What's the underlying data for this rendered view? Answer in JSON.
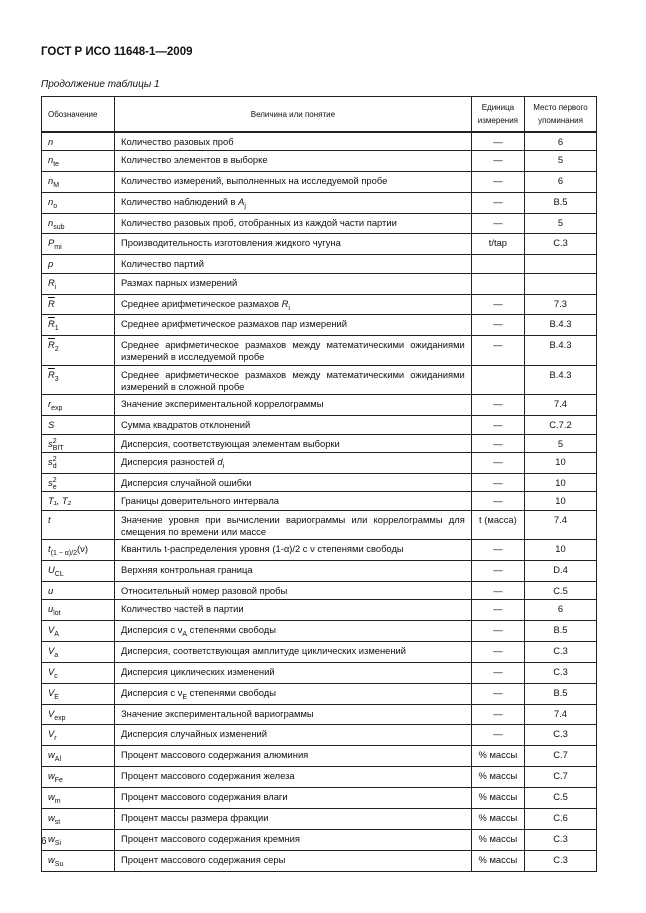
{
  "header": {
    "doc_id": "ГОСТ Р ИСО 11648-1—2009"
  },
  "caption": "Продолжение таблицы 1",
  "table": {
    "headers": [
      "Обозначение",
      "Величина или понятие",
      "Единица измерения",
      "Место первого упоминания"
    ],
    "rows": [
      {
        "sym": "n",
        "desc": "Количество разовых проб",
        "unit": "—",
        "ref": "6"
      },
      {
        "sym": "n",
        "sub": "te",
        "desc": "Количество элементов в выборке",
        "unit": "—",
        "ref": "5"
      },
      {
        "sym": "n",
        "sub": "M",
        "desc": "Количество измерений, выполненных на исследуемой пробе",
        "unit": "—",
        "ref": "6"
      },
      {
        "sym": "n",
        "sub": "o",
        "desc": "Количество наблюдений в A_j",
        "unit": "—",
        "ref": "B.5"
      },
      {
        "sym": "n",
        "sub": "sub",
        "desc": "Количество разовых проб, отобранных из каждой части партии",
        "unit": "—",
        "ref": "5"
      },
      {
        "sym": "P",
        "sub": "mi",
        "desc": "Производительность изготовления жидкого чугуна",
        "unit": "t/tap",
        "ref": "C.3"
      },
      {
        "sym": "p",
        "desc": "Количество партий",
        "unit": "",
        "ref": ""
      },
      {
        "sym": "R",
        "sub": "i",
        "desc": "Размах парных измерений",
        "unit": "",
        "ref": ""
      },
      {
        "sym": "R",
        "bar": true,
        "desc": "Среднее арифметическое размахов R_i",
        "unit": "—",
        "ref": "7.3"
      },
      {
        "sym": "R",
        "bar": true,
        "sub": "1",
        "desc": "Среднее арифметическое размахов пар измерений",
        "unit": "—",
        "ref": "B.4.3"
      },
      {
        "sym": "R",
        "bar": true,
        "sub": "2",
        "desc": "Среднее арифметическое размахов между математическими ожиданиями измерений в исследуемой пробе",
        "unit": "—",
        "ref": "B.4.3",
        "tall": true
      },
      {
        "sym": "R",
        "bar": true,
        "sub": "3",
        "desc": "Среднее арифметическое размахов между математическими ожиданиями измерений в сложной пробе",
        "unit": "",
        "ref": "B.4.3",
        "tall": true
      },
      {
        "sym": "r",
        "sub": "exp",
        "desc": "Значение экспериментальной коррелограммы",
        "unit": "—",
        "ref": "7.4"
      },
      {
        "sym": "S",
        "desc": "Сумма квадратов отклонений",
        "unit": "—",
        "ref": "C.7.2"
      },
      {
        "sym": "s",
        "sub": "BIT",
        "sup": "2",
        "desc": "Дисперсия, соответствующая элементам выборки",
        "unit": "—",
        "ref": "5"
      },
      {
        "sym": "s",
        "sub": "d",
        "sup": "2",
        "desc": "Дисперсия разностей d_i",
        "unit": "—",
        "ref": "10"
      },
      {
        "sym": "s",
        "sub": "e",
        "sup": "2",
        "desc": "Дисперсия случайной ошибки",
        "unit": "—",
        "ref": "10"
      },
      {
        "sym": "T₁, T₂",
        "desc": "Границы доверительного интервала",
        "unit": "—",
        "ref": "10"
      },
      {
        "sym": "t",
        "desc": "Значение уровня при вычислении вариограммы или коррелограммы для смещения по времени или массе",
        "unit": "t (масса)",
        "ref": "7.4",
        "tall": true
      },
      {
        "sym": "t",
        "sub": "(1 − α)/2",
        "post": "(ν)",
        "desc": "Квантиль t-распределения уровня (1-α)/2 с ν степенями свободы",
        "unit": "—",
        "ref": "10"
      },
      {
        "sym": "U",
        "sub": "CL",
        "desc": "Верхняя контрольная граница",
        "unit": "—",
        "ref": "D.4"
      },
      {
        "sym": "u",
        "desc": "Относительный номер разовой пробы",
        "unit": "—",
        "ref": "C.5"
      },
      {
        "sym": "u",
        "sub": "lot",
        "desc": "Количество частей в партии",
        "unit": "—",
        "ref": "6"
      },
      {
        "sym": "V",
        "sub": "A",
        "desc": "Дисперсия с ν_A степенями свободы",
        "unit": "—",
        "ref": "B.5"
      },
      {
        "sym": "V",
        "sub": "a",
        "desc": "Дисперсия, соответствующая амплитуде циклических изменений",
        "unit": "—",
        "ref": "C.3"
      },
      {
        "sym": "V",
        "sub": "c",
        "desc": "Дисперсия циклических изменений",
        "unit": "—",
        "ref": "C.3"
      },
      {
        "sym": "V",
        "sub": "E",
        "desc": "Дисперсия с ν_E степенями свободы",
        "unit": "—",
        "ref": "B.5"
      },
      {
        "sym": "V",
        "sub": "exp",
        "desc": "Значение экспериментальной вариограммы",
        "unit": "—",
        "ref": "7.4"
      },
      {
        "sym": "V",
        "sub": "r",
        "desc": "Дисперсия случайных изменений",
        "unit": "—",
        "ref": "C.3"
      },
      {
        "sym": "w",
        "sub": "Al",
        "desc": "Процент массового содержания алюминия",
        "unit": "% массы",
        "ref": "C.7"
      },
      {
        "sym": "w",
        "sub": "Fe",
        "desc": "Процент массового содержания железа",
        "unit": "% массы",
        "ref": "C.7"
      },
      {
        "sym": "w",
        "sub": "m",
        "desc": "Процент массового содержания влаги",
        "unit": "% массы",
        "ref": "C.5"
      },
      {
        "sym": "w",
        "sub": "st",
        "desc": "Процент массы размера фракции",
        "unit": "% массы",
        "ref": "C.6"
      },
      {
        "sym": "w",
        "sub": "Si",
        "desc": "Процент массового содержания кремния",
        "unit": "% массы",
        "ref": "C.3"
      },
      {
        "sym": "w",
        "sub": "Su",
        "desc": "Процент массового содержания серы",
        "unit": "% массы",
        "ref": "C.3"
      }
    ]
  },
  "page_number": "6"
}
